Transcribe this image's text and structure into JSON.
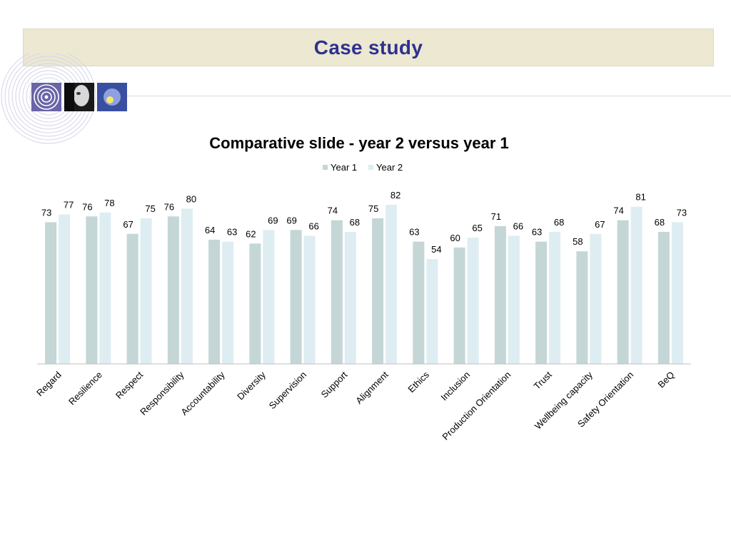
{
  "slide": {
    "title": "Case study"
  },
  "chart_data": {
    "type": "bar",
    "title": "Comparative slide - year 2 versus year 1",
    "legend_position": "top",
    "categories": [
      "Regard",
      "Resilience",
      "Respect",
      "Responsibility",
      "Accountability",
      "Diversity",
      "Supervision",
      "Support",
      "Alignment",
      "Ethics",
      "Inclusion",
      "Production Orientation",
      "Trust",
      "Wellbeing capacity",
      "Safety Orientation",
      "BeQ"
    ],
    "series": [
      {
        "name": "Year 1",
        "color": "#c4d6d6",
        "values": [
          73,
          76,
          67,
          76,
          64,
          62,
          69,
          74,
          75,
          63,
          60,
          71,
          63,
          58,
          74,
          68
        ]
      },
      {
        "name": "Year 2",
        "color": "#deedf2",
        "values": [
          77,
          78,
          75,
          80,
          63,
          69,
          66,
          68,
          82,
          54,
          65,
          66,
          68,
          67,
          81,
          73
        ]
      }
    ],
    "ylim": [
      0,
      100
    ],
    "grid": false,
    "data_labels": true
  }
}
